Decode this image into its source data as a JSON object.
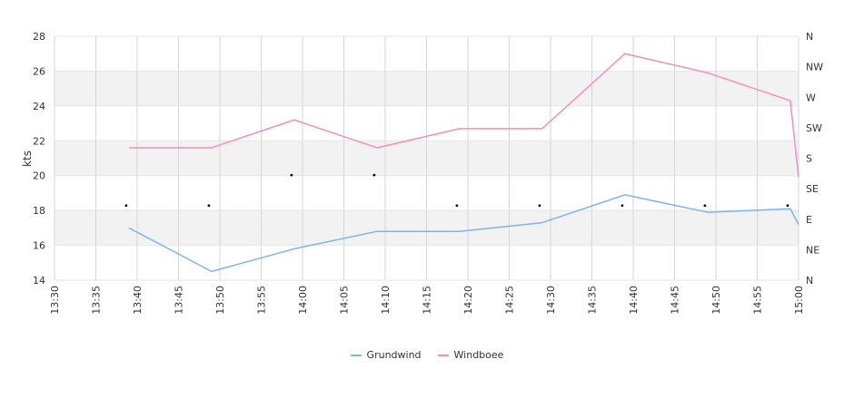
{
  "chart_data": {
    "type": "line",
    "ylabel": "kts",
    "ylim": [
      14,
      28
    ],
    "yticks": [
      "14",
      "16",
      "18",
      "20",
      "22",
      "24",
      "26",
      "28"
    ],
    "xticks": [
      "13:30",
      "13:35",
      "13:40",
      "13:45",
      "13:50",
      "13:55",
      "14:00",
      "14:05",
      "14:10",
      "14:15",
      "14:20",
      "14:25",
      "14:30",
      "14:35",
      "14:40",
      "14:45",
      "14:50",
      "14:55",
      "15:00"
    ],
    "direction_ticks": [
      "N",
      "NE",
      "E",
      "SE",
      "S",
      "SW",
      "W",
      "NW",
      "N"
    ],
    "series": [
      {
        "name": "Grundwind",
        "color": "#7cb5ec",
        "x": [
          "13:39",
          "13:49",
          "13:59",
          "14:09",
          "14:19",
          "14:29",
          "14:39",
          "14:49",
          "14:59",
          "15:00"
        ],
        "values": [
          17.0,
          14.5,
          15.8,
          16.8,
          16.8,
          17.3,
          18.9,
          17.9,
          18.1,
          17.2
        ]
      },
      {
        "name": "Windboee",
        "color": "#f28fbd",
        "x": [
          "13:39",
          "13:49",
          "13:59",
          "14:09",
          "14:19",
          "14:29",
          "14:39",
          "14:49",
          "14:59",
          "15:00"
        ],
        "values": [
          21.6,
          21.6,
          23.2,
          21.6,
          22.7,
          22.7,
          27.0,
          25.9,
          24.3,
          19.9
        ]
      }
    ],
    "direction_markers": {
      "x": [
        "13:39",
        "13:49",
        "13:59",
        "14:09",
        "14:19",
        "14:29",
        "14:39",
        "14:49",
        "14:59"
      ],
      "direction": [
        "E",
        "E",
        "SE",
        "SE",
        "E",
        "E",
        "E",
        "E",
        "E"
      ]
    },
    "alternate_bands": true,
    "grid": true,
    "legend": "bottom"
  }
}
